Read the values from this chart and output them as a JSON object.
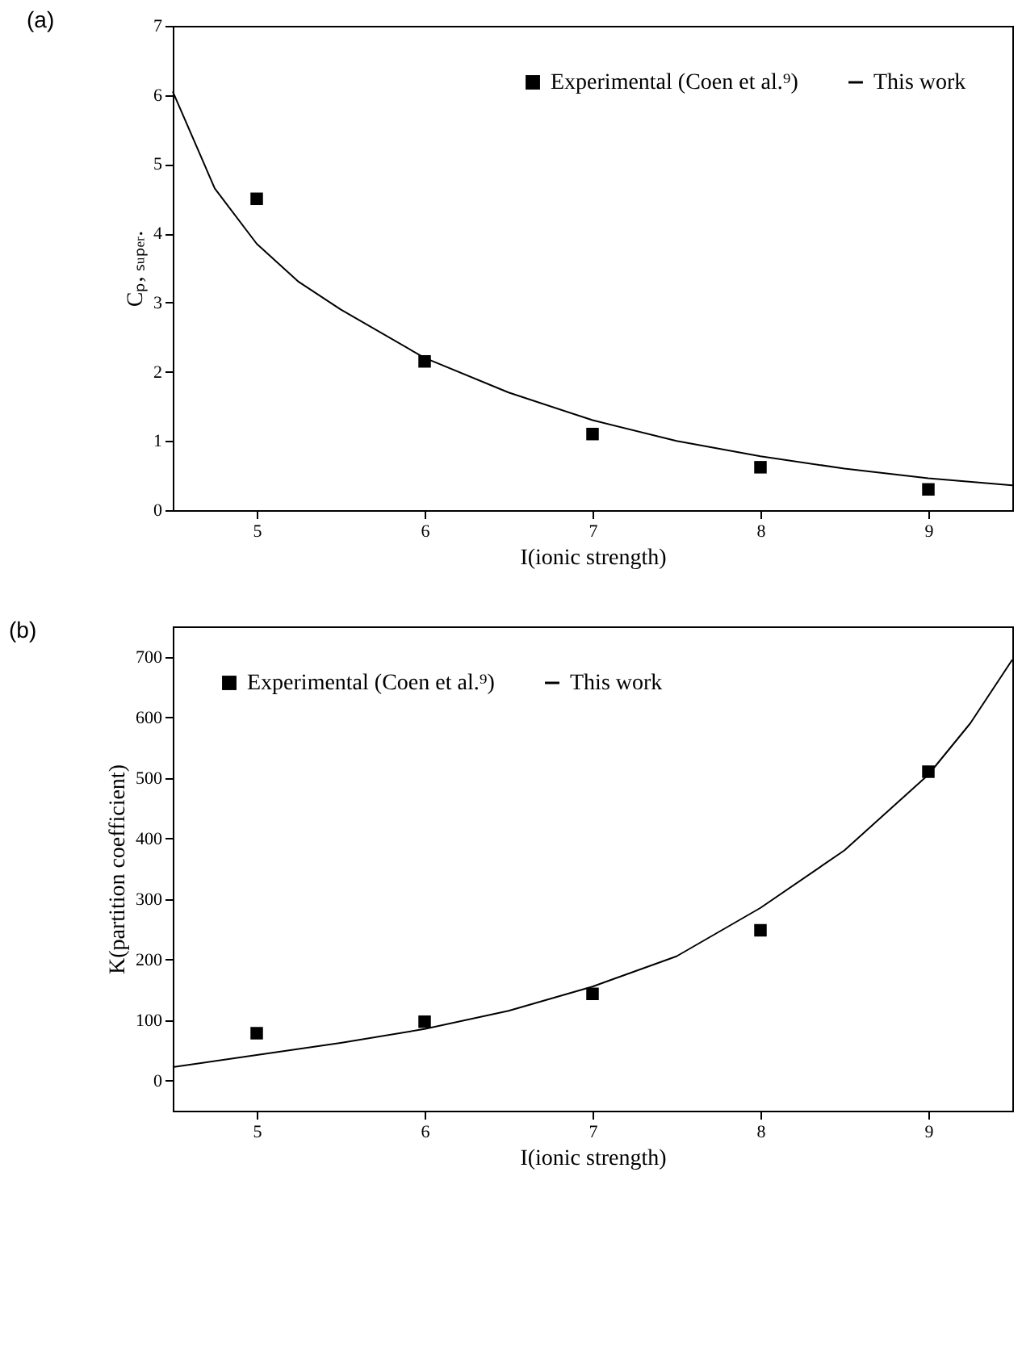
{
  "chart_data": [
    {
      "type": "scatter",
      "title": "(a)",
      "xlabel": "I(ionic strength)",
      "ylabel": "Cₚ, ₛᵤₚₑᵣ.",
      "xlim": [
        4.5,
        9.5
      ],
      "xticks": [
        5,
        6,
        7,
        8,
        9
      ],
      "ylim": [
        0,
        7
      ],
      "yticks": [
        0,
        1,
        2,
        3,
        4,
        5,
        6,
        7
      ],
      "legend": "top right",
      "grid": false,
      "series": [
        {
          "name": "Experimental (Coen et al.⁹)",
          "marker": "square",
          "color": "#000000",
          "x": [
            5,
            6,
            7,
            8,
            9
          ],
          "values": [
            4.5,
            2.15,
            1.1,
            0.62,
            0.3
          ]
        },
        {
          "name": "This work",
          "type": "line",
          "line_style": "solid",
          "color": "#000000",
          "x": [
            4.5,
            4.75,
            5,
            5.25,
            5.5,
            6,
            6.5,
            7,
            7.5,
            8,
            8.5,
            9,
            9.5
          ],
          "values": [
            6.05,
            4.65,
            3.85,
            3.3,
            2.9,
            2.2,
            1.7,
            1.3,
            1.0,
            0.78,
            0.6,
            0.46,
            0.36
          ]
        }
      ]
    },
    {
      "type": "scatter",
      "title": "(b)",
      "xlabel": "I(ionic strength)",
      "ylabel": "K(partition coefficient)",
      "xlim": [
        4.5,
        9.5
      ],
      "xticks": [
        5,
        6,
        7,
        8,
        9
      ],
      "ylim": [
        -50,
        750
      ],
      "yticks": [
        0,
        100,
        200,
        300,
        400,
        500,
        600,
        700
      ],
      "legend": "top left",
      "grid": false,
      "series": [
        {
          "name": "Experimental (Coen et al.⁹)",
          "marker": "square",
          "color": "#000000",
          "x": [
            5,
            6,
            7,
            8,
            9
          ],
          "values": [
            78,
            97,
            143,
            248,
            510
          ]
        },
        {
          "name": "This work",
          "type": "line",
          "line_style": "solid",
          "color": "#000000",
          "x": [
            4.5,
            5,
            5.5,
            6,
            6.5,
            7,
            7.5,
            8,
            8.5,
            9,
            9.25,
            9.5
          ],
          "values": [
            22,
            42,
            62,
            85,
            115,
            155,
            205,
            285,
            380,
            505,
            590,
            695
          ]
        }
      ]
    }
  ]
}
